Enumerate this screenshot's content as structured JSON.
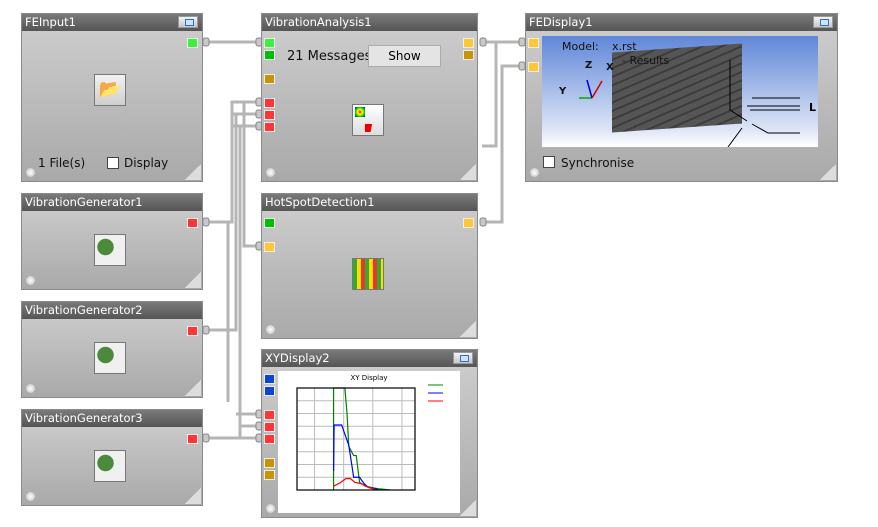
{
  "panels": {
    "fe_input": {
      "title": "FEInput1",
      "files": "1 File(s)",
      "display_label": "Display"
    },
    "vib_analysis": {
      "title": "VibrationAnalysis1",
      "messages": "21 Messages",
      "show_label": "Show"
    },
    "fe_display": {
      "title": "FEDisplay1",
      "model_label": "Model:",
      "model_value": "x.rst",
      "results_label": "- Results",
      "axis_z": "Z",
      "axis_x": "X",
      "axis_y": "Y",
      "sync_label": "Synchronise"
    },
    "vib_gen1": {
      "title": "VibrationGenerator1"
    },
    "vib_gen2": {
      "title": "VibrationGenerator2"
    },
    "vib_gen3": {
      "title": "VibrationGenerator3"
    },
    "hotspot": {
      "title": "HotSpotDetection1"
    },
    "xy_display": {
      "title": "XYDisplay2"
    }
  },
  "port_colors": {
    "data": "#3cf03c",
    "signal": "#ff3434",
    "result": "#ffc830",
    "aux": "#c89400",
    "curve": "#0a46d2"
  },
  "chart_data": {
    "type": "line",
    "title": "XY Display",
    "x_scale": "log",
    "xlim": [
      0.25,
      2800
    ],
    "ylim": [
      0,
      8
    ],
    "grid": true,
    "legend": "top-right",
    "series": [
      {
        "color": "#008000",
        "points": [
          [
            4.5,
            0
          ],
          [
            4.5,
            8
          ],
          [
            11,
            8
          ],
          [
            13,
            6
          ],
          [
            15,
            3.4
          ],
          [
            22,
            2.7
          ],
          [
            27,
            2.7
          ],
          [
            35,
            0.6
          ],
          [
            55,
            0.3
          ],
          [
            150,
            0.1
          ],
          [
            400,
            0
          ]
        ]
      },
      {
        "color": "#0000ff",
        "points": [
          [
            4.5,
            1.5
          ],
          [
            4.7,
            5.1
          ],
          [
            8.5,
            5.1
          ],
          [
            15,
            3.5
          ],
          [
            22,
            1.0
          ],
          [
            35,
            1.0
          ],
          [
            50,
            0.5
          ],
          [
            70,
            0.2
          ],
          [
            150,
            0.05
          ]
        ]
      },
      {
        "color": "#ff0000",
        "points": [
          [
            4.5,
            0.3
          ],
          [
            8,
            0.6
          ],
          [
            12,
            0.9
          ],
          [
            17,
            0.9
          ],
          [
            24,
            0.6
          ],
          [
            40,
            0.5
          ],
          [
            70,
            0.2
          ],
          [
            120,
            0.05
          ]
        ]
      }
    ]
  }
}
